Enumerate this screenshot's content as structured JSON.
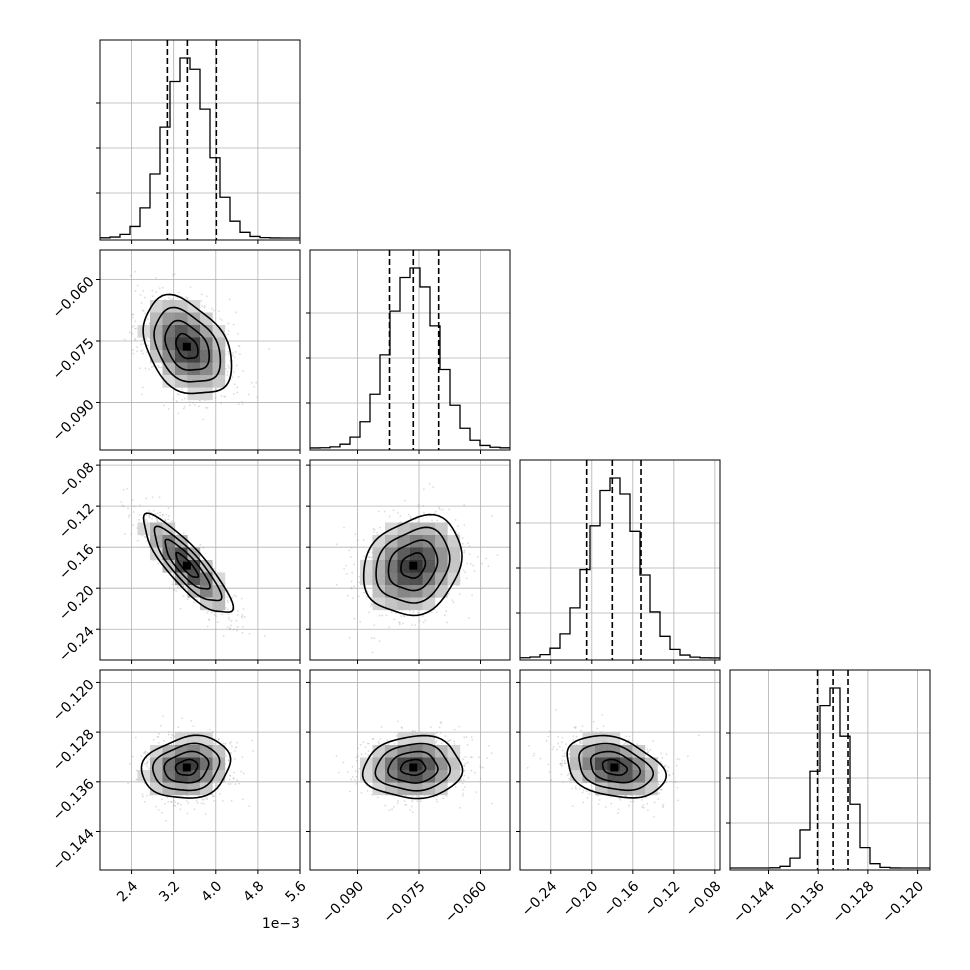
{
  "chart_data": {
    "type": "corner",
    "description": "Corner plot: 1D marginal histograms on the diagonal (with 16/50/84 percentile dashed lines) and 2D density histograms with contours below the diagonal.",
    "grid": true,
    "colors": {
      "ink": "#000000",
      "grid": "#b0b0b0",
      "sample_points": "#9a9a9a"
    },
    "parameters": [
      {
        "index": 0,
        "center": 0.00345,
        "sd": 0.00042,
        "range": [
          0.0018,
          0.0056
        ],
        "ticks": [
          0.0024,
          0.0032,
          0.004,
          0.0048,
          0.0056
        ],
        "tick_labels": [
          "2.4",
          "3.2",
          "4.0",
          "4.8",
          "5.6"
        ],
        "offset_label": "1e−3",
        "quantiles": [
          0.00308,
          0.00346,
          0.00401
        ]
      },
      {
        "index": 1,
        "center": -0.0764,
        "sd": 0.006,
        "range": [
          -0.1016,
          -0.0528
        ],
        "ticks": [
          -0.09,
          -0.075,
          -0.06
        ],
        "tick_labels": [
          "−0.090",
          "−0.075",
          "−0.060"
        ],
        "quantiles": [
          -0.0822,
          -0.0764,
          -0.0702
        ]
      },
      {
        "index": 2,
        "center": -0.178,
        "sd": 0.024,
        "range": [
          -0.27,
          -0.075
        ],
        "ticks": [
          -0.24,
          -0.2,
          -0.16,
          -0.12,
          -0.08
        ],
        "tick_labels": [
          "−0.24",
          "−0.20",
          "−0.16",
          "−0.12",
          "−0.08"
        ],
        "quantiles": [
          -0.205,
          -0.18,
          -0.152
        ]
      },
      {
        "index": 3,
        "center": -0.1337,
        "sd": 0.0025,
        "range": [
          -0.1502,
          -0.118
        ],
        "ticks": [
          -0.144,
          -0.136,
          -0.128,
          -0.12
        ],
        "tick_labels": [
          "−0.144",
          "−0.136",
          "−0.128",
          "−0.120"
        ],
        "quantiles": [
          -0.1361,
          -0.1336,
          -0.1312
        ]
      }
    ],
    "correlations": {
      "1_0": -0.35,
      "2_0": -0.85,
      "2_1": 0.2,
      "3_0": 0.15,
      "3_1": 0.05,
      "3_2": -0.3
    },
    "histogram_bins": 20,
    "contour_levels_sigma": [
      0.5,
      1.0,
      1.5,
      2.0
    ]
  }
}
